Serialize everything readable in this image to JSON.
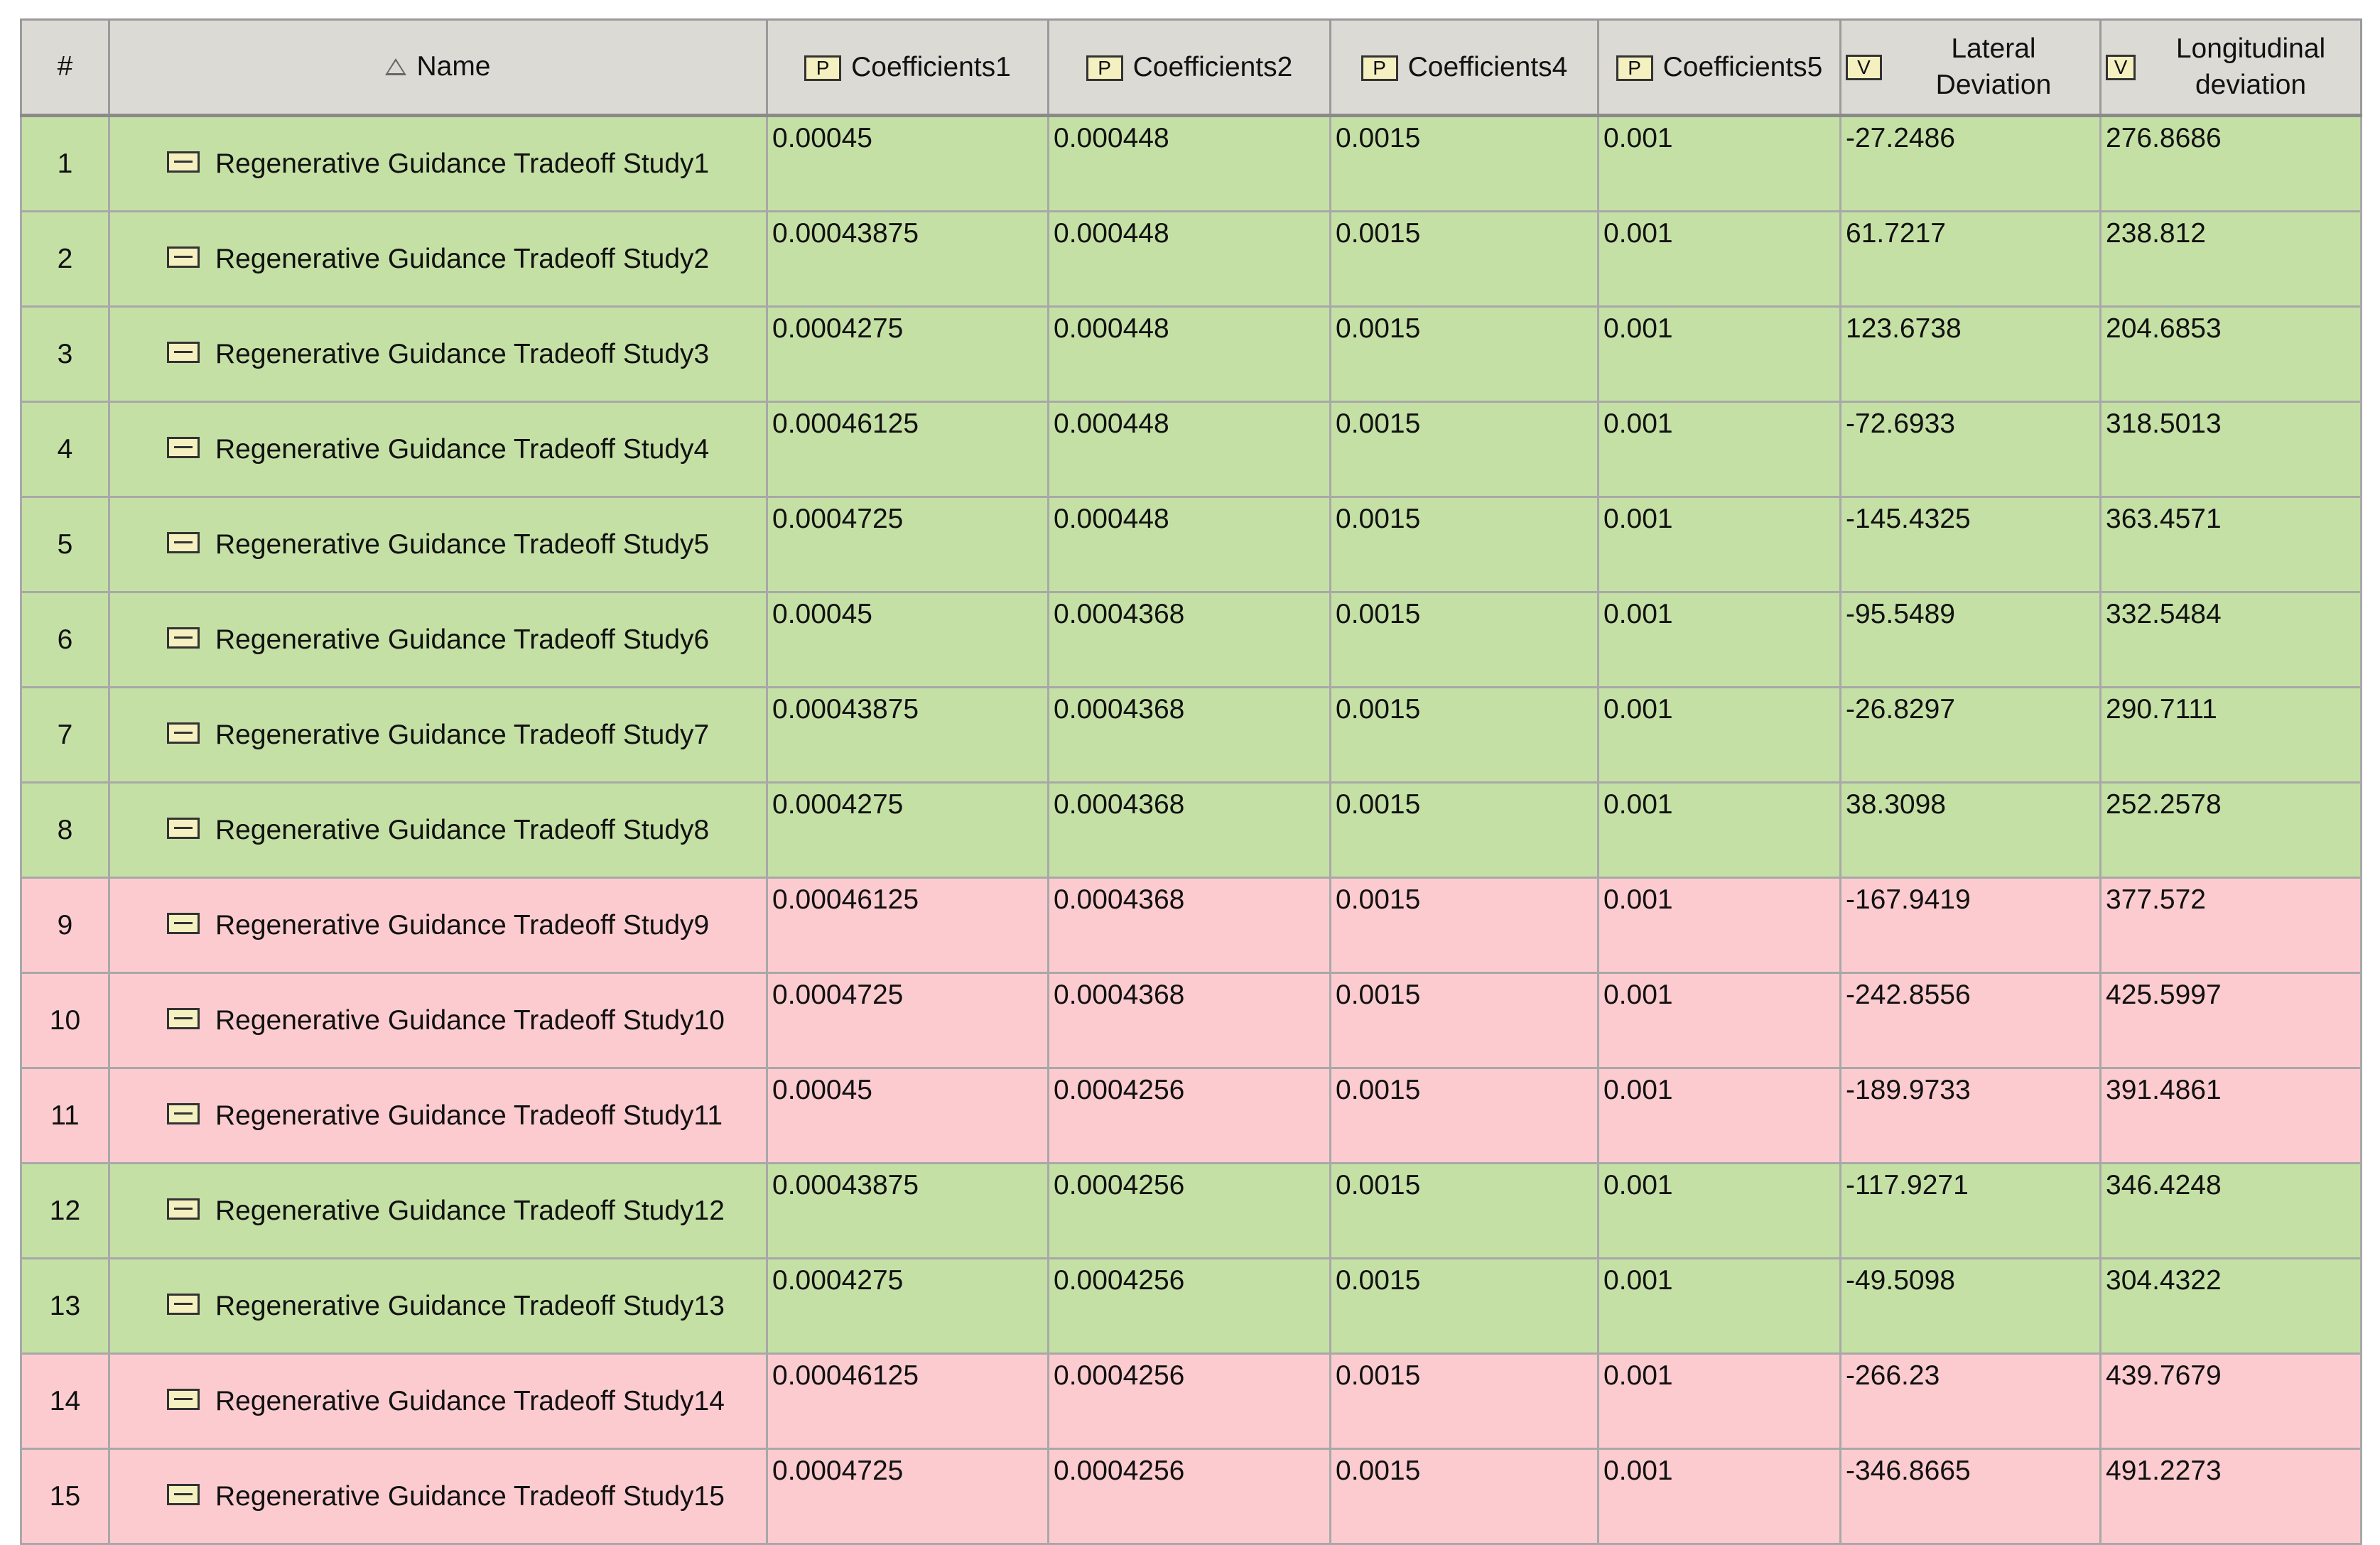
{
  "header": {
    "columns": [
      {
        "label": "#"
      },
      {
        "label": "Name",
        "sorted": true
      },
      {
        "label": "Coefficients1",
        "icon": "P"
      },
      {
        "label": "Coefficients2",
        "icon": "P"
      },
      {
        "label": "Coefficients4",
        "icon": "P"
      },
      {
        "label": "Coefficients5",
        "icon": "P"
      },
      {
        "label": "Lateral Deviation",
        "icon": "V"
      },
      {
        "label": "Longitudinal deviation",
        "icon": "V"
      }
    ]
  },
  "table": {
    "rows": [
      {
        "color": "#c5e0a5",
        "cells": [
          "1",
          "Regenerative Guidance Tradeoff Study1",
          "0.00045",
          "0.000448",
          "0.0015",
          "0.001",
          "-27.2486",
          "276.8686"
        ]
      },
      {
        "color": "#c5e0a5",
        "cells": [
          "2",
          "Regenerative Guidance Tradeoff Study2",
          "0.00043875",
          "0.000448",
          "0.0015",
          "0.001",
          "61.7217",
          "238.812"
        ]
      },
      {
        "color": "#c5e0a5",
        "cells": [
          "3",
          "Regenerative Guidance Tradeoff Study3",
          "0.0004275",
          "0.000448",
          "0.0015",
          "0.001",
          "123.6738",
          "204.6853"
        ]
      },
      {
        "color": "#c5e0a5",
        "cells": [
          "4",
          "Regenerative Guidance Tradeoff Study4",
          "0.00046125",
          "0.000448",
          "0.0015",
          "0.001",
          "-72.6933",
          "318.5013"
        ]
      },
      {
        "color": "#c5e0a5",
        "cells": [
          "5",
          "Regenerative Guidance Tradeoff Study5",
          "0.0004725",
          "0.000448",
          "0.0015",
          "0.001",
          "-145.4325",
          "363.4571"
        ]
      },
      {
        "color": "#c5e0a5",
        "cells": [
          "6",
          "Regenerative Guidance Tradeoff Study6",
          "0.00045",
          "0.0004368",
          "0.0015",
          "0.001",
          "-95.5489",
          "332.5484"
        ]
      },
      {
        "color": "#c5e0a5",
        "cells": [
          "7",
          "Regenerative Guidance Tradeoff Study7",
          "0.00043875",
          "0.0004368",
          "0.0015",
          "0.001",
          "-26.8297",
          "290.7111"
        ]
      },
      {
        "color": "#c5e0a5",
        "cells": [
          "8",
          "Regenerative Guidance Tradeoff Study8",
          "0.0004275",
          "0.0004368",
          "0.0015",
          "0.001",
          "38.3098",
          "252.2578"
        ]
      },
      {
        "color": "#fccbd0",
        "cells": [
          "9",
          "Regenerative Guidance Tradeoff Study9",
          "0.00046125",
          "0.0004368",
          "0.0015",
          "0.001",
          "-167.9419",
          "377.572"
        ]
      },
      {
        "color": "#fccbd0",
        "cells": [
          "10",
          "Regenerative Guidance Tradeoff Study10",
          "0.0004725",
          "0.0004368",
          "0.0015",
          "0.001",
          "-242.8556",
          "425.5997"
        ]
      },
      {
        "color": "#fccbd0",
        "cells": [
          "11",
          "Regenerative Guidance Tradeoff Study11",
          "0.00045",
          "0.0004256",
          "0.0015",
          "0.001",
          "-189.9733",
          "391.4861"
        ]
      },
      {
        "color": "#c5e0a5",
        "cells": [
          "12",
          "Regenerative Guidance Tradeoff Study12",
          "0.00043875",
          "0.0004256",
          "0.0015",
          "0.001",
          "-117.9271",
          "346.4248"
        ]
      },
      {
        "color": "#c5e0a5",
        "cells": [
          "13",
          "Regenerative Guidance Tradeoff Study13",
          "0.0004275",
          "0.0004256",
          "0.0015",
          "0.001",
          "-49.5098",
          "304.4322"
        ]
      },
      {
        "color": "#fccbd0",
        "cells": [
          "14",
          "Regenerative Guidance Tradeoff Study14",
          "0.00046125",
          "0.0004256",
          "0.0015",
          "0.001",
          "-266.23",
          "439.7679"
        ]
      },
      {
        "color": "#fccbd0",
        "cells": [
          "15",
          "Regenerative Guidance Tradeoff Study15",
          "0.0004725",
          "0.0004256",
          "0.0015",
          "0.001",
          "-346.8665",
          "491.2273"
        ]
      }
    ]
  }
}
